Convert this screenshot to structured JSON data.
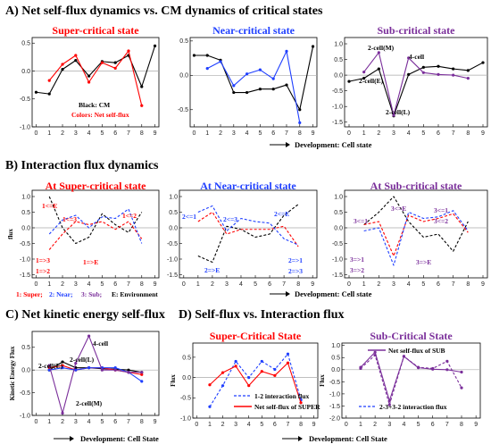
{
  "colors": {
    "red": "#ff0000",
    "blue": "#1f3fff",
    "purple": "#7a2e9a",
    "black": "#000000",
    "grey": "#999999"
  },
  "sections": {
    "a": "A) Net self-flux dynamics vs. CM dynamics of critical states",
    "b": "B) Interaction flux dynamics",
    "c": "C) Net kinetic energy self-flux",
    "d": "D) Self-flux vs. Interaction flux"
  },
  "footers": {
    "a": "Development: Cell state",
    "b": "Development: Cell state",
    "c": "Development: Cell State",
    "d": "Development: Cell State"
  },
  "legend_b": {
    "super": "1: Super;",
    "near": "2: Near;",
    "sub": "3: Sub;",
    "env": "E: Environment"
  },
  "chart_data": [
    {
      "id": "a1",
      "type": "line",
      "title": "Super-critical state",
      "x": [
        0,
        1,
        2,
        3,
        4,
        5,
        6,
        7,
        8,
        9
      ],
      "ylim": [
        -1,
        0.6
      ],
      "yticks": [
        0.5,
        0,
        -0.5,
        -1
      ],
      "yticklabels": [
        "0.5",
        "0.0",
        "-0.5",
        "-1.0"
      ],
      "annotations": [
        "Black: CM",
        "Colors: Net self-flux"
      ],
      "series": [
        {
          "color": "#000000",
          "x": [
            0,
            1,
            2,
            3,
            4,
            5,
            6,
            7,
            8,
            9
          ],
          "values": [
            -0.38,
            -0.41,
            0.03,
            0.19,
            -0.09,
            0.17,
            0.15,
            0.28,
            -0.28,
            0.45
          ]
        },
        {
          "color": "#ff0000",
          "x": [
            1,
            2,
            3,
            4,
            5,
            6,
            7,
            8
          ],
          "values": [
            -0.17,
            0.12,
            0.28,
            -0.2,
            0.15,
            0.05,
            0.36,
            -0.62
          ]
        }
      ]
    },
    {
      "id": "a2",
      "type": "line",
      "title": "Near-critical state",
      "x": [
        0,
        1,
        2,
        3,
        4,
        5,
        6,
        7,
        8,
        9
      ],
      "ylim": [
        -0.75,
        0.55
      ],
      "yticks": [
        0.5,
        0,
        -0.5
      ],
      "yticklabels": [
        "0.5",
        "0.0",
        "-0.5"
      ],
      "series": [
        {
          "color": "#000000",
          "x": [
            0,
            1,
            2,
            3,
            4,
            5,
            6,
            7,
            8,
            9
          ],
          "values": [
            0.29,
            0.29,
            0.22,
            -0.25,
            -0.25,
            -0.2,
            -0.2,
            -0.14,
            -0.5,
            0.42
          ]
        },
        {
          "color": "#1f3fff",
          "x": [
            1,
            2,
            3,
            4,
            5,
            6,
            7,
            8
          ],
          "values": [
            0.1,
            0.2,
            -0.15,
            0.02,
            0.08,
            -0.05,
            0.35,
            -0.69
          ]
        }
      ]
    },
    {
      "id": "a3",
      "type": "line",
      "title": "Sub-critical state",
      "x": [
        0,
        1,
        2,
        3,
        4,
        5,
        6,
        7,
        8,
        9
      ],
      "ylim": [
        -1.65,
        1.2
      ],
      "yticks": [
        1,
        0.5,
        0,
        -0.5,
        -1,
        -1.5
      ],
      "yticklabels": [
        "1.0",
        "0.5",
        "0.0",
        "-0.5",
        "-1.0",
        "-1.5"
      ],
      "labels": {
        "m": "2-cell(M)",
        "e": "2-cell(E)",
        "l": "2-cell(L)",
        "four": "4-cell"
      },
      "series": [
        {
          "color": "#000000",
          "x": [
            0,
            1,
            2,
            3,
            4,
            5,
            6,
            7,
            8,
            9
          ],
          "values": [
            -0.2,
            -0.1,
            0.2,
            -1.3,
            0.02,
            0.25,
            0.28,
            0.2,
            0.15,
            0.4
          ]
        },
        {
          "color": "#7a2e9a",
          "x": [
            1,
            2,
            3,
            4,
            5,
            6,
            7,
            8
          ],
          "values": [
            0.1,
            0.72,
            -1.28,
            0.55,
            0.08,
            0.02,
            0.0,
            -0.1
          ]
        }
      ]
    },
    {
      "id": "b1",
      "type": "line",
      "title": "At Super-critical state",
      "ylabel": "flux",
      "x": [
        0,
        1,
        2,
        3,
        4,
        5,
        6,
        7,
        8,
        9
      ],
      "ylim": [
        -1.6,
        1.2
      ],
      "yticks": [
        1,
        0.5,
        0,
        -0.5,
        -1,
        -1.5
      ],
      "yticklabels": [
        "1.0",
        "0.5",
        "0.0",
        "-0.5",
        "-1.0",
        "-1.5"
      ],
      "labels": {
        "toE": "1<=E",
        "to3": "1<=3",
        "to2": "1<=2",
        "fr3": "1=>3",
        "fr2": "1=>2",
        "frE": "1=>E"
      },
      "series": [
        {
          "color": "#000000",
          "x": [
            1,
            2,
            3,
            4,
            5,
            6,
            7,
            8
          ],
          "values": [
            1.0,
            0.0,
            -0.5,
            -0.3,
            0.45,
            0.1,
            -0.15,
            0.5
          ]
        },
        {
          "color": "#ff0000",
          "x": [
            1,
            2,
            3,
            4,
            5,
            6,
            7,
            8
          ],
          "values": [
            -0.7,
            -0.2,
            0.2,
            0.1,
            0.2,
            -0.05,
            0.2,
            -0.35
          ]
        },
        {
          "color": "#1f3fff",
          "x": [
            1,
            2,
            3,
            4,
            5,
            6,
            7,
            8
          ],
          "values": [
            -0.2,
            0.25,
            0.4,
            0.0,
            0.35,
            0.3,
            0.6,
            -0.5
          ]
        }
      ]
    },
    {
      "id": "b2",
      "type": "line",
      "title": "At Near-critical state",
      "x": [
        0,
        1,
        2,
        3,
        4,
        5,
        6,
        7,
        8,
        9
      ],
      "ylim": [
        -1.6,
        1.2
      ],
      "yticks": [
        1,
        0.5,
        0,
        -0.5,
        -1,
        -1.5
      ],
      "yticklabels": [
        "1.0",
        "0.5",
        "0.0",
        "-0.5",
        "-1.0",
        "-1.5"
      ],
      "labels": {
        "to1": "2<=1",
        "to3": "2<=3",
        "toE": "2<=E",
        "frE": "2=>E",
        "fr1": "2=>1",
        "fr3": "2=>3"
      },
      "series": [
        {
          "color": "#000000",
          "x": [
            1,
            2,
            3,
            4,
            5,
            6,
            7,
            8
          ],
          "values": [
            -0.9,
            -1.1,
            0.05,
            -0.05,
            -0.3,
            -0.2,
            0.4,
            0.75
          ]
        },
        {
          "color": "#ff0000",
          "x": [
            1,
            2,
            3,
            4,
            5,
            6,
            7,
            8
          ],
          "values": [
            0.2,
            0.5,
            -0.2,
            -0.05,
            -0.05,
            -0.05,
            0.05,
            -0.6
          ]
        },
        {
          "color": "#1f3fff",
          "x": [
            1,
            2,
            3,
            4,
            5,
            6,
            7,
            8
          ],
          "values": [
            0.5,
            0.7,
            -0.1,
            0.3,
            0.2,
            0.15,
            -0.35,
            -0.55
          ]
        }
      ]
    },
    {
      "id": "b3",
      "type": "line",
      "title": "At Sub-critical state",
      "x": [
        0,
        1,
        2,
        3,
        4,
        5,
        6,
        7,
        8,
        9
      ],
      "ylim": [
        -1.6,
        1.2
      ],
      "yticks": [
        1,
        0.5,
        0,
        -0.5,
        -1,
        -1.5
      ],
      "yticklabels": [
        "1.0",
        "0.5",
        "0.0",
        "-0.5",
        "-1.0",
        "-1.5"
      ],
      "labels": {
        "toE": "3<=E",
        "to1": "3<=1",
        "to1b": "3<=1",
        "to2": "3<=2",
        "fr1": "3=>1",
        "fr2": "3=>2",
        "frE": "3=>E"
      },
      "series": [
        {
          "color": "#000000",
          "x": [
            1,
            2,
            3,
            4,
            5,
            6,
            7,
            8
          ],
          "values": [
            0.1,
            0.5,
            1.0,
            0.2,
            -0.3,
            -0.2,
            -0.75,
            0.2
          ]
        },
        {
          "color": "#ff0000",
          "x": [
            1,
            2,
            3,
            4,
            5,
            6,
            7,
            8
          ],
          "values": [
            0.1,
            0.2,
            -0.9,
            0.4,
            0.2,
            0.3,
            0.45,
            -0.15
          ]
        },
        {
          "color": "#1f3fff",
          "x": [
            1,
            2,
            3,
            4,
            5,
            6,
            7,
            8
          ],
          "values": [
            -0.1,
            0.0,
            -1.2,
            0.5,
            0.3,
            0.35,
            0.55,
            -0.1
          ]
        }
      ]
    },
    {
      "id": "c",
      "type": "line",
      "ylabel": "Kinetic Energy Flux",
      "x": [
        0,
        1,
        2,
        3,
        4,
        5,
        6,
        7,
        8,
        9
      ],
      "ylim": [
        -1.0,
        0.85
      ],
      "yticks": [
        0.5,
        0,
        -0.5,
        -1
      ],
      "yticklabels": [
        "0.5",
        "0.0",
        "-0.5",
        "-1.0"
      ],
      "labels": {
        "four": "4-cell",
        "l": "2-cell(L)",
        "e": "2-cell(E)",
        "m": "2-cell(M)"
      },
      "series": [
        {
          "color": "#000000",
          "x": [
            1,
            2,
            3,
            4,
            5,
            6,
            7,
            8
          ],
          "values": [
            0.0,
            0.18,
            0.05,
            0.05,
            0.03,
            0.02,
            0.0,
            -0.05
          ]
        },
        {
          "color": "#ff0000",
          "x": [
            1,
            2,
            3,
            4,
            5,
            6,
            7,
            8
          ],
          "values": [
            0.05,
            0.1,
            0.0,
            0.05,
            0.05,
            0.0,
            -0.05,
            -0.1
          ]
        },
        {
          "color": "#1f3fff",
          "x": [
            1,
            2,
            3,
            4,
            5,
            6,
            7,
            8
          ],
          "values": [
            0.0,
            0.05,
            0.0,
            0.05,
            0.05,
            0.05,
            -0.05,
            -0.25
          ]
        },
        {
          "color": "#7a2e9a",
          "x": [
            1,
            2,
            3,
            4,
            5,
            6,
            7,
            8
          ],
          "values": [
            0.1,
            -0.95,
            0.15,
            0.75,
            0.0,
            0.0,
            -0.05,
            -0.05
          ]
        }
      ]
    },
    {
      "id": "d1",
      "type": "line",
      "title": "Super-Critical State",
      "ylabel": "Flux",
      "x": [
        0,
        1,
        2,
        3,
        4,
        5,
        6,
        7,
        8,
        9
      ],
      "ylim": [
        -1.0,
        0.85
      ],
      "yticks": [
        0.5,
        0,
        -0.5,
        -1
      ],
      "yticklabels": [
        "0.5",
        "0.0",
        "-0.5",
        "-1.0"
      ],
      "legend": [
        "1-2 interaction flux",
        "Net self-flux of SUPER"
      ],
      "series": [
        {
          "name": "1-2 interaction flux",
          "color": "#1f3fff",
          "dash": true,
          "x": [
            1,
            2,
            3,
            4,
            5,
            6,
            7,
            8
          ],
          "values": [
            -0.72,
            -0.2,
            0.4,
            0.0,
            0.4,
            0.2,
            0.58,
            -0.55
          ]
        },
        {
          "name": "Net self-flux of SUPER",
          "color": "#ff0000",
          "x": [
            1,
            2,
            3,
            4,
            5,
            6,
            7,
            8
          ],
          "values": [
            -0.18,
            0.12,
            0.28,
            -0.2,
            0.15,
            0.05,
            0.36,
            -0.62
          ]
        }
      ]
    },
    {
      "id": "d2",
      "type": "line",
      "title": "Sub-Critical State",
      "ylabel": "Flux",
      "x": [
        0,
        1,
        2,
        3,
        4,
        5,
        6,
        7,
        8,
        9
      ],
      "ylim": [
        -2.0,
        1.1
      ],
      "yticks": [
        1,
        0.5,
        0,
        -0.5,
        -1,
        -1.5,
        -2
      ],
      "yticklabels": [
        "1.0",
        "0.5",
        "0.0",
        "-0.5",
        "-1.0",
        "-1.5",
        "-2.0"
      ],
      "legend": [
        "Net self-flux of SUB",
        "2-3+3-2 interaction flux"
      ],
      "series": [
        {
          "name": "Net self-flux of SUB",
          "color": "#7a2e9a",
          "x": [
            1,
            2,
            3,
            4,
            5,
            6,
            7,
            8
          ],
          "values": [
            0.1,
            0.72,
            -1.28,
            0.55,
            0.08,
            0.02,
            0.0,
            -0.1
          ]
        },
        {
          "name": "2-3+3-2 interaction flux",
          "color": "#7a2e9a",
          "dash": true,
          "x": [
            1,
            2,
            3,
            4,
            5,
            6,
            7,
            8
          ],
          "values": [
            0.05,
            0.6,
            -1.45,
            0.55,
            0.1,
            0.05,
            0.35,
            -0.75
          ]
        }
      ]
    }
  ]
}
